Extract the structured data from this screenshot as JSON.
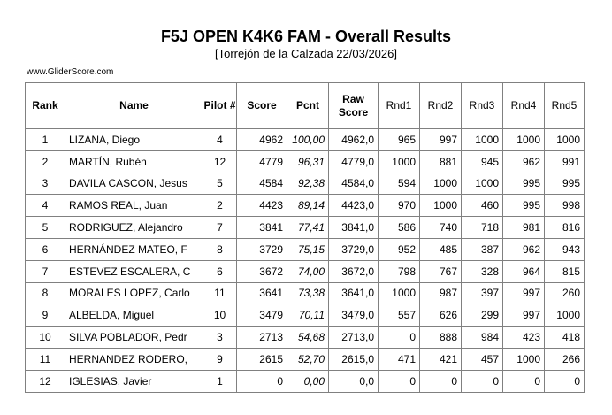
{
  "header": {
    "title": "F5J OPEN K4K6 FAM - Overall Results",
    "subtitle": "[Torrejón de la Calzada 22/03/2026]",
    "source": "www.GliderScore.com"
  },
  "table": {
    "columns": [
      {
        "key": "rank",
        "label": "Rank"
      },
      {
        "key": "name",
        "label": "Name"
      },
      {
        "key": "pilot-number",
        "label": "Pilot #"
      },
      {
        "key": "score",
        "label": "Score"
      },
      {
        "key": "pcnt",
        "label": "Pcnt"
      },
      {
        "key": "raw-score",
        "label": "Raw Score"
      },
      {
        "key": "rnd1",
        "label": "Rnd1"
      },
      {
        "key": "rnd2",
        "label": "Rnd2"
      },
      {
        "key": "rnd3",
        "label": "Rnd3"
      },
      {
        "key": "rnd4",
        "label": "Rnd4"
      },
      {
        "key": "rnd5",
        "label": "Rnd5"
      }
    ],
    "rows": [
      [
        "1",
        "LIZANA, Diego",
        "4",
        "4962",
        "100,00",
        "4962,0",
        "965",
        "997",
        "1000",
        "1000",
        "1000"
      ],
      [
        "2",
        "MARTÍN, Rubén",
        "12",
        "4779",
        "96,31",
        "4779,0",
        "1000",
        "881",
        "945",
        "962",
        "991"
      ],
      [
        "3",
        "DAVILA CASCON, Jesus",
        "5",
        "4584",
        "92,38",
        "4584,0",
        "594",
        "1000",
        "1000",
        "995",
        "995"
      ],
      [
        "4",
        "RAMOS REAL, Juan",
        "2",
        "4423",
        "89,14",
        "4423,0",
        "970",
        "1000",
        "460",
        "995",
        "998"
      ],
      [
        "5",
        "RODRIGUEZ, Alejandro",
        "7",
        "3841",
        "77,41",
        "3841,0",
        "586",
        "740",
        "718",
        "981",
        "816"
      ],
      [
        "6",
        "HERNÁNDEZ MATEO, F",
        "8",
        "3729",
        "75,15",
        "3729,0",
        "952",
        "485",
        "387",
        "962",
        "943"
      ],
      [
        "7",
        "ESTEVEZ ESCALERA, C",
        "6",
        "3672",
        "74,00",
        "3672,0",
        "798",
        "767",
        "328",
        "964",
        "815"
      ],
      [
        "8",
        "MORALES LOPEZ, Carlo",
        "11",
        "3641",
        "73,38",
        "3641,0",
        "1000",
        "987",
        "397",
        "997",
        "260"
      ],
      [
        "9",
        "ALBELDA, Miguel",
        "10",
        "3479",
        "70,11",
        "3479,0",
        "557",
        "626",
        "299",
        "997",
        "1000"
      ],
      [
        "10",
        "SILVA POBLADOR, Pedr",
        "3",
        "2713",
        "54,68",
        "2713,0",
        "0",
        "888",
        "984",
        "423",
        "418"
      ],
      [
        "11",
        "HERNANDEZ RODERO,",
        "9",
        "2615",
        "52,70",
        "2615,0",
        "471",
        "421",
        "457",
        "1000",
        "266"
      ],
      [
        "12",
        "IGLESIAS, Javier",
        "1",
        "0",
        "0,00",
        "0,0",
        "0",
        "0",
        "0",
        "0",
        "0"
      ]
    ]
  },
  "colors": {
    "border": "#808080",
    "text": "#000000",
    "background": "#ffffff"
  }
}
